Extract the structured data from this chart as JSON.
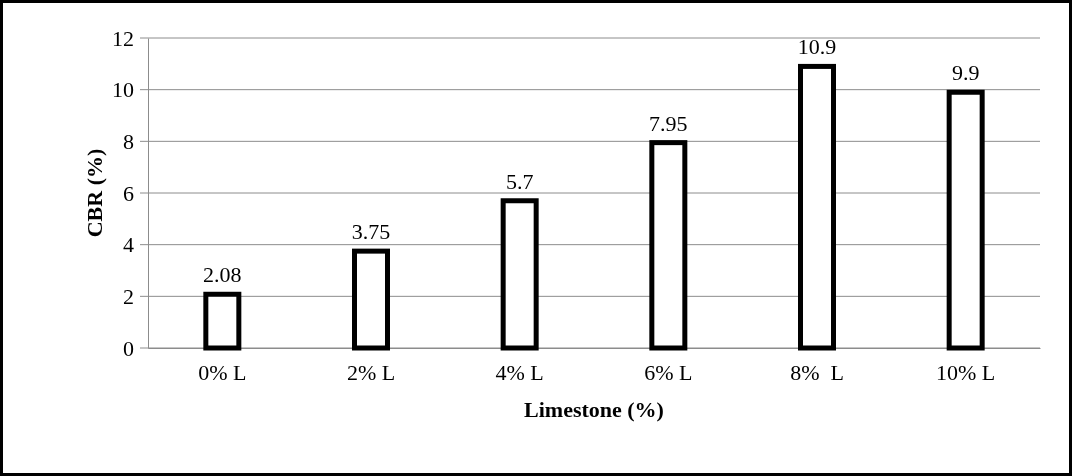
{
  "chart_data": {
    "type": "bar",
    "xlabel": "Limestone (%)",
    "ylabel": "CBR (%)",
    "categories": [
      "0% L",
      "2% L",
      "4% L",
      "6% L",
      "8%  L",
      "10% L"
    ],
    "values": [
      2.08,
      3.75,
      5.7,
      7.95,
      10.9,
      9.9
    ],
    "color": "#ffffff",
    "ylim": [
      0,
      12
    ],
    "yticks": [
      0,
      2,
      4,
      6,
      8,
      10,
      12
    ],
    "grid": "y",
    "data_labels": true
  }
}
